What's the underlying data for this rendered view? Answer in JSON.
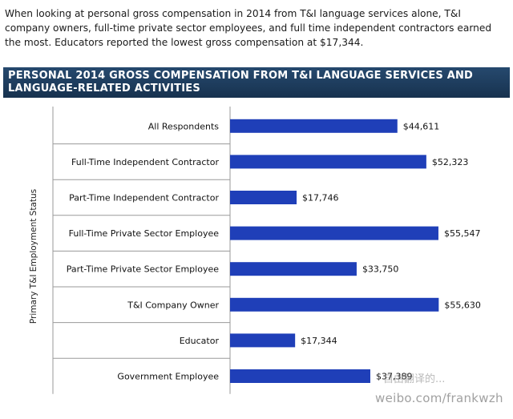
{
  "intro_text": "When looking at personal gross compensation in 2014 from T&I language services alone, T&I company owners, full-time private sector employees, and full time independent contractors earned the most. Educators reported the lowest gross compensation at $17,344.",
  "banner_title": "PERSONAL 2014 GROSS COMPENSATION FROM T&I LANGUAGE SERVICES AND LANGUAGE-RELATED ACTIVITIES",
  "watermark": "weibo.com/frankwzh",
  "watermark_top": "自由翻译的... ",
  "colors": {
    "bar": "#1f3fb8",
    "banner": "#1f3f63",
    "separator": "#9a9a9a"
  },
  "chart_data": {
    "type": "bar",
    "orientation": "horizontal",
    "ylabel": "Primary T&I Employment Status",
    "categories": [
      "All Respondents",
      "Full-Time Independent Contractor",
      "Part-Time Independent Contractor",
      "Full-Time Private Sector Employee",
      "Part-Time Private Sector Employee",
      "T&I Company Owner",
      "Educator",
      "Government Employee"
    ],
    "values": [
      44611,
      52323,
      17746,
      55547,
      33750,
      55630,
      17344,
      37389
    ],
    "value_labels": [
      "$44,611",
      "$52,323",
      "$17,746",
      "$55,547",
      "$33,750",
      "$55,630",
      "$17,344",
      "$37,389"
    ],
    "xlim": [
      0,
      60000
    ],
    "grid": false
  }
}
